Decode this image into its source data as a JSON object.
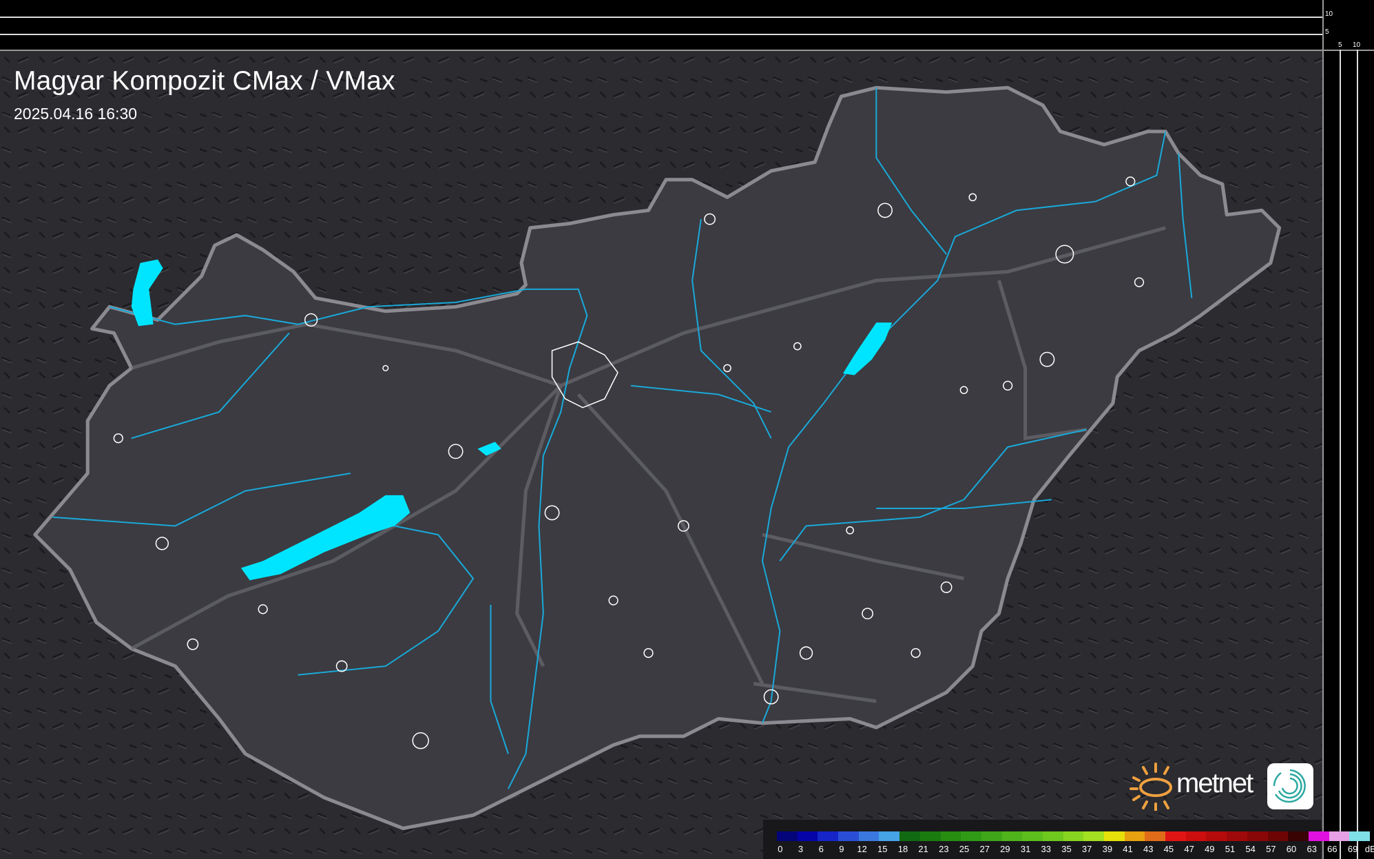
{
  "header": {
    "title": "Magyar Kompozit CMax / VMax",
    "datetime": "2025.04.16 16:30"
  },
  "scale_axes": {
    "vertical_labels": [
      "10",
      "5"
    ],
    "horizontal_labels": [
      "5",
      "10"
    ]
  },
  "legend": {
    "unit": "dBZ",
    "values": [
      "0",
      "3",
      "6",
      "9",
      "12",
      "15",
      "18",
      "21",
      "23",
      "25",
      "27",
      "29",
      "31",
      "33",
      "35",
      "37",
      "39",
      "41",
      "43",
      "45",
      "47",
      "49",
      "51",
      "54",
      "57",
      "60",
      "63",
      "66",
      "69"
    ],
    "colors": [
      "#05057a",
      "#0404a8",
      "#1525c8",
      "#2a4fd6",
      "#3a78df",
      "#45a3e6",
      "#116a11",
      "#1a7c0f",
      "#268c12",
      "#309a16",
      "#3fa61a",
      "#4fb31c",
      "#5cbe1c",
      "#6ec81e",
      "#88d521",
      "#a3e022",
      "#e6e00a",
      "#e6a010",
      "#e06b18",
      "#e21515",
      "#cc0e0e",
      "#b50b0b",
      "#a00909",
      "#8a0707",
      "#6e0505",
      "#3a0303",
      "#e010e0",
      "#e6a0e6",
      "#80e0e8"
    ]
  },
  "branding": {
    "logo_text": "metnet",
    "sun_color": "#f0a040",
    "icon_color": "#2aa8a0"
  },
  "map_colors": {
    "background": "#2e2e33",
    "country_fill": "#3a3a40",
    "border": "#8a8a90",
    "rivers": "#1aa8d8",
    "lakes": "#00e5ff",
    "cities": "#ffffff"
  }
}
